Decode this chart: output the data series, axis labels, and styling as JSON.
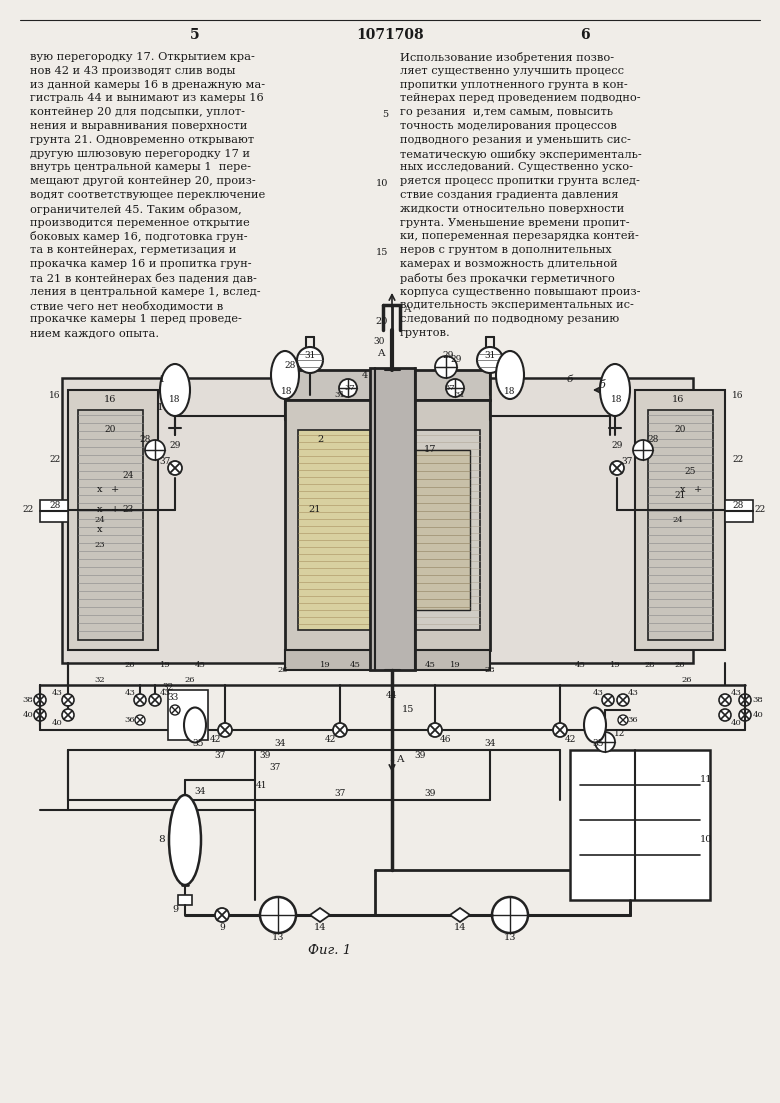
{
  "page_number_left": "5",
  "page_number_center": "1071708",
  "page_number_right": "6",
  "left_column_text": [
    "вую перегородку 17. Открытием кра-",
    "нов 42 и 43 производят слив воды",
    "из данной камеры 16 в дренажную ма-",
    "гистраль 44 и вынимают из камеры 16",
    "контейнер 20 для подсыпки, уплот-",
    "нения и выравнивания поверхности",
    "грунта 21. Одновременно открывают",
    "другую шлюзовую перегородку 17 и",
    "внутрь центральной камеры 1  пере-",
    "мещают другой контейнер 20, произ-",
    "водят соответствующее переключение",
    "ограничителей 45. Таким образом,",
    "производится переменное открытие",
    "боковых камер 16, подготовка грун-",
    "та в контейнерах, герметизация и",
    "прокачка камер 16 и пропитка грун-",
    "та 21 в контейнерах без падения дав-",
    "ления в центральной камере 1, вслед-",
    "ствие чего нет необходимости в",
    "прокачке камеры 1 перед проведе-",
    "нием каждого опыта."
  ],
  "right_column_text": [
    "Использование изобретения позво-",
    "ляет существенно улучшить процесс",
    "пропитки уплотненного грунта в кон-",
    "тейнерах перед проведением подводно-",
    "го резания  и,тем самым, повысить",
    "точность моделирования процессов",
    "подводного резания и уменьшить сис-",
    "тематическую ошибку эксперименталь-",
    "ных исследований. Существенно уско-",
    "ряется процесс пропитки грунта вслед-",
    "ствие создания градиента давления",
    "жидкости относительно поверхности",
    "грунта. Уменьшение времени пропит-",
    "ки, попеременная перезарядка контей-",
    "неров с грунтом в дополнительных",
    "камерах и возможность длительной",
    "работы без прокачки герметичного",
    "корпуса существенно повышают произ-",
    "водительность экспериментальных ис-",
    "следований по подводному резанию",
    "грунтов."
  ],
  "fig_caption": "Фиг. 1",
  "bg_color": "#f0ede8",
  "text_color": "#1a1a1a",
  "line_color": "#222222"
}
